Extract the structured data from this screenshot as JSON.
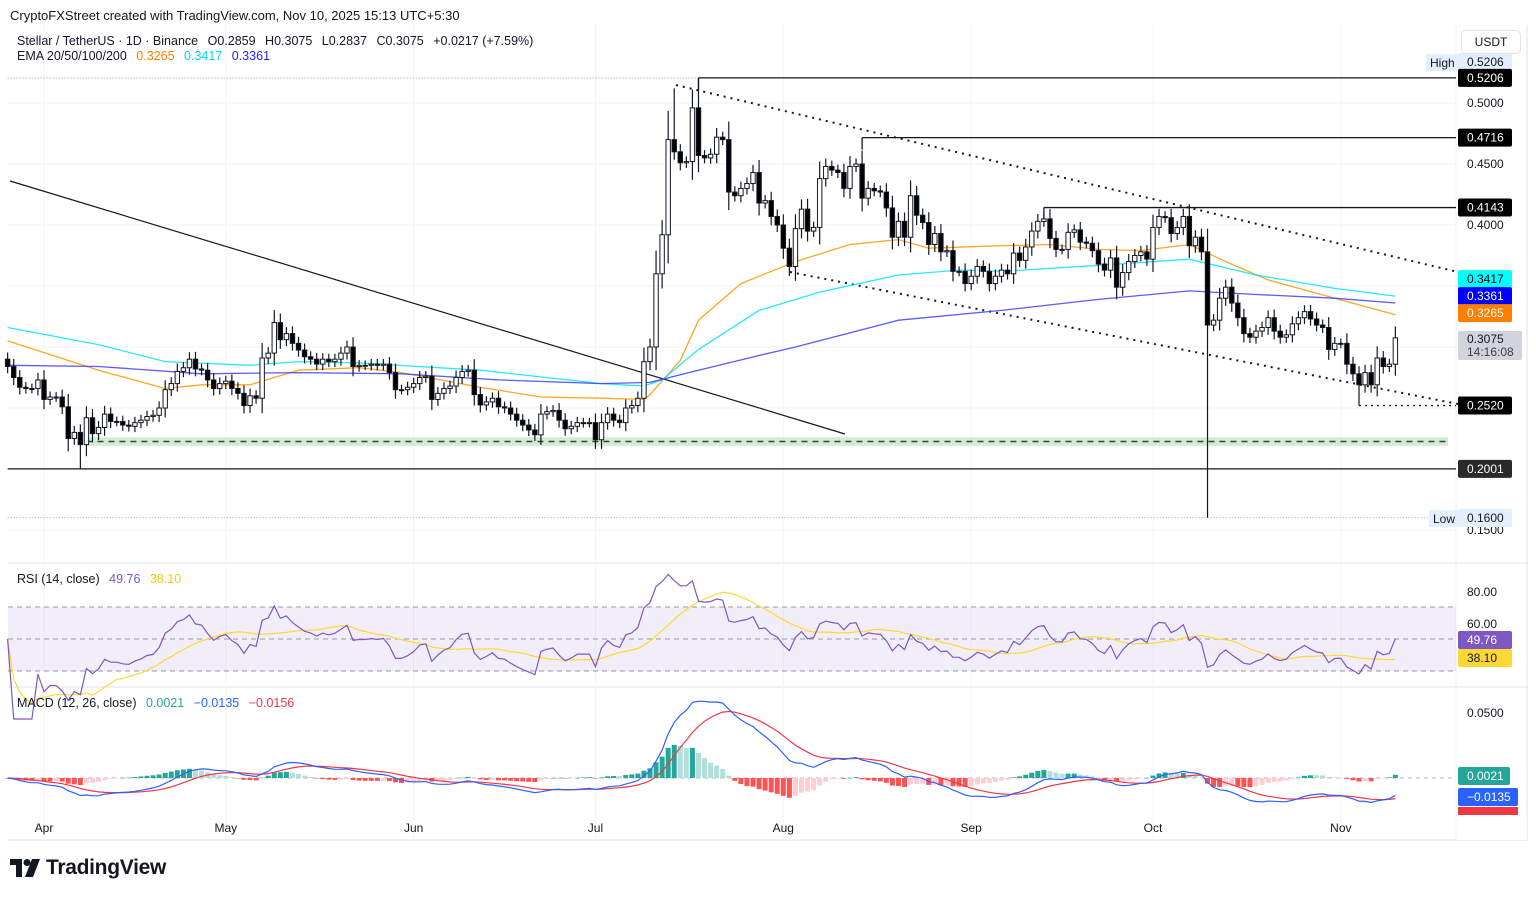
{
  "credit": "CryptoFXStreet created with TradingView.com, Nov 10, 2025 15:13 UTC+5:30",
  "legend": {
    "symbol": "Stellar / TetherUS · 1D · Binance",
    "open": "O0.2859",
    "high": "H0.3075",
    "low": "L0.2837",
    "close": "C0.3075",
    "change": "+0.0217 (+7.59%)",
    "ema_label": "EMA 20/50/100/200",
    "ema_values": [
      "0.3265",
      "0.3417",
      "0.3361"
    ]
  },
  "currency_button": "USDT",
  "brand": "TradingView",
  "colors": {
    "up_body": "#ffffff",
    "down_body": "#000000",
    "ema_orange": "#ff9800",
    "ema_cyan": "#00e5ff",
    "ema_blue": "#3d3dff",
    "rsi": "#7e57c2",
    "rsi_signal": "#fdd835",
    "macd": "#2962ff",
    "macd_signal": "#f23645",
    "hist_up": "#26a69a",
    "hist_down": "#ff5252",
    "support_zone": "#c8e6c9"
  },
  "chart_data": [
    {
      "type": "candlestick",
      "title": "Stellar / TetherUS · 1D · Binance",
      "last_date": "2025-11-10",
      "x_tick_labels": [
        {
          "date": "2025-04-01",
          "label": "Apr"
        },
        {
          "date": "2025-05-01",
          "label": "May"
        },
        {
          "date": "2025-06-01",
          "label": "Jun"
        },
        {
          "date": "2025-07-01",
          "label": "Jul"
        },
        {
          "date": "2025-08-01",
          "label": "Aug"
        },
        {
          "date": "2025-09-01",
          "label": "Sep"
        },
        {
          "date": "2025-10-01",
          "label": "Oct"
        },
        {
          "date": "2025-11-01",
          "label": "Nov"
        }
      ],
      "y_tick_labels": [
        "0.5000",
        "0.4500",
        "0.4000",
        "0.1500"
      ],
      "y_ticks": [
        0.5,
        0.45,
        0.4,
        0.35,
        0.3,
        0.25,
        0.2,
        0.15
      ],
      "ylim": [
        0.138,
        0.548
      ],
      "first_open": 0.29,
      "closes": [
        0.284,
        0.275,
        0.267,
        0.266,
        0.266,
        0.273,
        0.257,
        0.259,
        0.259,
        0.251,
        0.225,
        0.23,
        0.22,
        0.242,
        0.229,
        0.234,
        0.245,
        0.239,
        0.239,
        0.236,
        0.235,
        0.238,
        0.24,
        0.243,
        0.244,
        0.25,
        0.265,
        0.27,
        0.28,
        0.283,
        0.29,
        0.282,
        0.281,
        0.273,
        0.266,
        0.27,
        0.272,
        0.266,
        0.262,
        0.252,
        0.26,
        0.258,
        0.291,
        0.295,
        0.32,
        0.306,
        0.311,
        0.303,
        0.2975,
        0.292,
        0.29,
        0.286,
        0.29,
        0.288,
        0.29,
        0.295,
        0.3,
        0.284,
        0.285,
        0.285,
        0.286,
        0.285,
        0.286,
        0.279,
        0.265,
        0.265,
        0.267,
        0.27,
        0.275,
        0.276,
        0.257,
        0.262,
        0.266,
        0.268,
        0.275,
        0.28,
        0.281,
        0.261,
        0.2525,
        0.255,
        0.258,
        0.251,
        0.25,
        0.245,
        0.24,
        0.236,
        0.232,
        0.228,
        0.245,
        0.247,
        0.248,
        0.24,
        0.233,
        0.235,
        0.238,
        0.238,
        0.238,
        0.224,
        0.238,
        0.245,
        0.24,
        0.238,
        0.25,
        0.252,
        0.258,
        0.288,
        0.3,
        0.36,
        0.392,
        0.47,
        0.46,
        0.451,
        0.452,
        0.496,
        0.457,
        0.455,
        0.458,
        0.472,
        0.47,
        0.427,
        0.424,
        0.43,
        0.434,
        0.443,
        0.418,
        0.42,
        0.407,
        0.4,
        0.381,
        0.366,
        0.397,
        0.413,
        0.395,
        0.398,
        0.438,
        0.448,
        0.445,
        0.443,
        0.43,
        0.448,
        0.45,
        0.422,
        0.43,
        0.428,
        0.427,
        0.414,
        0.39,
        0.403,
        0.39,
        0.424,
        0.408,
        0.402,
        0.384,
        0.393,
        0.378,
        0.379,
        0.362,
        0.362,
        0.352,
        0.358,
        0.366,
        0.362,
        0.352,
        0.358,
        0.363,
        0.36,
        0.377,
        0.371,
        0.382,
        0.395,
        0.403,
        0.405,
        0.389,
        0.38,
        0.38,
        0.394,
        0.396,
        0.386,
        0.385,
        0.379,
        0.368,
        0.363,
        0.373,
        0.349,
        0.361,
        0.37,
        0.375,
        0.378,
        0.372,
        0.398,
        0.407,
        0.406,
        0.393,
        0.398,
        0.407,
        0.383,
        0.39,
        0.378,
        0.318,
        0.322,
        0.34,
        0.349,
        0.336,
        0.324,
        0.311,
        0.308,
        0.313,
        0.316,
        0.324,
        0.313,
        0.308,
        0.31,
        0.319,
        0.324,
        0.329,
        0.323,
        0.318,
        0.316,
        0.298,
        0.303,
        0.303,
        0.2859,
        0.278,
        0.269,
        0.279,
        0.269,
        0.291,
        0.284,
        0.2859,
        0.3075
      ],
      "wick_extremes": [
        {
          "date": "2025-04-07",
          "low": 0.2001
        },
        {
          "date": "2025-07-14",
          "high": 0.512
        },
        {
          "date": "2025-07-18",
          "high": 0.5206
        },
        {
          "date": "2025-10-10",
          "low": 0.16
        },
        {
          "date": "2025-11-04",
          "low": 0.252
        }
      ],
      "ema_series": [
        {
          "name": "EMA",
          "value": "0.3265",
          "color": "#ff9800",
          "points": [
            [
              "2025-03-26",
              0.305
            ],
            [
              "2025-04-10",
              0.281
            ],
            [
              "2025-04-21",
              0.266
            ],
            [
              "2025-04-27",
              0.269
            ],
            [
              "2025-05-05",
              0.269
            ],
            [
              "2025-05-13",
              0.281
            ],
            [
              "2025-05-23",
              0.283
            ],
            [
              "2025-05-30",
              0.279
            ],
            [
              "2025-06-12",
              0.267
            ],
            [
              "2025-06-22",
              0.259
            ],
            [
              "2025-07-02",
              0.258
            ],
            [
              "2025-07-09",
              0.257
            ],
            [
              "2025-07-10",
              0.261
            ],
            [
              "2025-07-15",
              0.289
            ],
            [
              "2025-07-18",
              0.322
            ],
            [
              "2025-07-25",
              0.352
            ],
            [
              "2025-08-03",
              0.37
            ],
            [
              "2025-08-12",
              0.384
            ],
            [
              "2025-08-20",
              0.388
            ],
            [
              "2025-08-25",
              0.381
            ],
            [
              "2025-09-06",
              0.383
            ],
            [
              "2025-09-14",
              0.384
            ],
            [
              "2025-09-22",
              0.38
            ],
            [
              "2025-09-29",
              0.379
            ],
            [
              "2025-10-07",
              0.384
            ],
            [
              "2025-10-13",
              0.37
            ],
            [
              "2025-10-20",
              0.355
            ],
            [
              "2025-10-31",
              0.34
            ],
            [
              "2025-11-10",
              0.3265
            ]
          ]
        },
        {
          "name": "EMA",
          "value": "0.3417",
          "color": "#00e5ff",
          "points": [
            [
              "2025-03-26",
              0.316
            ],
            [
              "2025-04-10",
              0.302
            ],
            [
              "2025-04-21",
              0.288
            ],
            [
              "2025-05-05",
              0.285
            ],
            [
              "2025-05-13",
              0.288
            ],
            [
              "2025-05-23",
              0.287
            ],
            [
              "2025-06-12",
              0.281
            ],
            [
              "2025-07-02",
              0.27
            ],
            [
              "2025-07-09",
              0.268
            ],
            [
              "2025-07-12",
              0.273
            ],
            [
              "2025-07-18",
              0.298
            ],
            [
              "2025-07-28",
              0.33
            ],
            [
              "2025-08-07",
              0.345
            ],
            [
              "2025-08-20",
              0.359
            ],
            [
              "2025-08-30",
              0.363
            ],
            [
              "2025-09-06",
              0.362
            ],
            [
              "2025-09-22",
              0.367
            ],
            [
              "2025-10-07",
              0.372
            ],
            [
              "2025-10-18",
              0.359
            ],
            [
              "2025-10-31",
              0.348
            ],
            [
              "2025-11-10",
              0.3417
            ]
          ]
        },
        {
          "name": "EMA",
          "value": "0.3361",
          "color": "#3d3dff",
          "points": [
            [
              "2025-03-26",
              0.285
            ],
            [
              "2025-04-10",
              0.284
            ],
            [
              "2025-04-27",
              0.278
            ],
            [
              "2025-05-13",
              0.279
            ],
            [
              "2025-05-30",
              0.278
            ],
            [
              "2025-06-15",
              0.273
            ],
            [
              "2025-07-02",
              0.27
            ],
            [
              "2025-07-10",
              0.271
            ],
            [
              "2025-07-18",
              0.281
            ],
            [
              "2025-07-28",
              0.293
            ],
            [
              "2025-08-03",
              0.3
            ],
            [
              "2025-08-20",
              0.322
            ],
            [
              "2025-09-06",
              0.33
            ],
            [
              "2025-09-22",
              0.339
            ],
            [
              "2025-10-07",
              0.346
            ],
            [
              "2025-10-18",
              0.343
            ],
            [
              "2025-10-31",
              0.34
            ],
            [
              "2025-11-10",
              0.3361
            ]
          ]
        }
      ],
      "levels": [
        {
          "price": 0.5206,
          "label": "0.5206",
          "style": "dotted",
          "from_date": "2025-03-26"
        },
        {
          "price": 0.5206,
          "label": "0.5206",
          "style": "solid",
          "from_date": "2025-07-18"
        },
        {
          "price": 0.4716,
          "label": "0.4716",
          "style": "solid",
          "from_date": "2025-08-14"
        },
        {
          "price": 0.4143,
          "label": "0.4143",
          "style": "solid",
          "from_date": "2025-09-13"
        },
        {
          "price": 0.252,
          "label": "0.2520",
          "style": "dotted",
          "from_date": "2025-11-04"
        },
        {
          "price": 0.2001,
          "label": "0.2001",
          "style": "solid",
          "from_date": "2025-03-26"
        },
        {
          "price": 0.16,
          "label": "0.1600",
          "style": "dotted",
          "from_date": "2025-03-26"
        }
      ],
      "support_zone": {
        "from": 0.219,
        "to": 0.226,
        "from_date": "2025-04-08"
      },
      "high_label": {
        "text": "High",
        "value": "0.5206"
      },
      "low_label": {
        "text": "Low",
        "value": "0.1600"
      },
      "last_price": {
        "value": "0.3075",
        "countdown": "14:16:08"
      }
    },
    {
      "type": "line",
      "title": "RSI (14, close)",
      "values_shown": [
        "49.76",
        "38.10"
      ],
      "y_tick_labels": [
        "80.00",
        "60.00"
      ],
      "bands": [
        30,
        50,
        70
      ],
      "ylim": [
        22,
        96
      ]
    },
    {
      "type": "line+bar",
      "title": "MACD (12, 26, close)",
      "values_shown": [
        "0.0021",
        "−0.0135",
        "−0.0156"
      ],
      "y_tick_labels": [
        "0.0500"
      ]
    }
  ]
}
